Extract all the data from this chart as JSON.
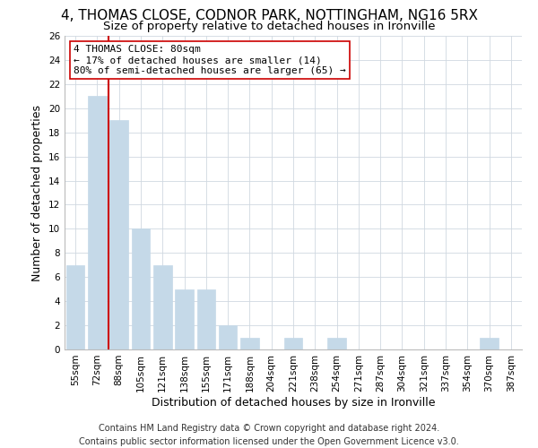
{
  "title": "4, THOMAS CLOSE, CODNOR PARK, NOTTINGHAM, NG16 5RX",
  "subtitle": "Size of property relative to detached houses in Ironville",
  "xlabel": "Distribution of detached houses by size in Ironville",
  "ylabel": "Number of detached properties",
  "footer_line1": "Contains HM Land Registry data © Crown copyright and database right 2024.",
  "footer_line2": "Contains public sector information licensed under the Open Government Licence v3.0.",
  "bin_labels": [
    "55sqm",
    "72sqm",
    "88sqm",
    "105sqm",
    "121sqm",
    "138sqm",
    "155sqm",
    "171sqm",
    "188sqm",
    "204sqm",
    "221sqm",
    "238sqm",
    "254sqm",
    "271sqm",
    "287sqm",
    "304sqm",
    "321sqm",
    "337sqm",
    "354sqm",
    "370sqm",
    "387sqm"
  ],
  "bar_heights": [
    7,
    21,
    19,
    10,
    7,
    5,
    5,
    2,
    1,
    0,
    1,
    0,
    1,
    0,
    0,
    0,
    0,
    0,
    0,
    1,
    0
  ],
  "bar_color": "#c5d9e8",
  "bar_edge_color": "#c5d9e8",
  "highlight_line_color": "#cc0000",
  "annotation_title": "4 THOMAS CLOSE: 80sqm",
  "annotation_line1": "← 17% of detached houses are smaller (14)",
  "annotation_line2": "80% of semi-detached houses are larger (65) →",
  "annotation_box_color": "#ffffff",
  "annotation_box_edge_color": "#cc0000",
  "ylim": [
    0,
    26
  ],
  "yticks": [
    0,
    2,
    4,
    6,
    8,
    10,
    12,
    14,
    16,
    18,
    20,
    22,
    24,
    26
  ],
  "background_color": "#ffffff",
  "grid_color": "#d0d8e0",
  "title_fontsize": 11,
  "subtitle_fontsize": 9.5,
  "axis_label_fontsize": 9,
  "tick_fontsize": 7.5,
  "annotation_fontsize": 8,
  "footer_fontsize": 7
}
